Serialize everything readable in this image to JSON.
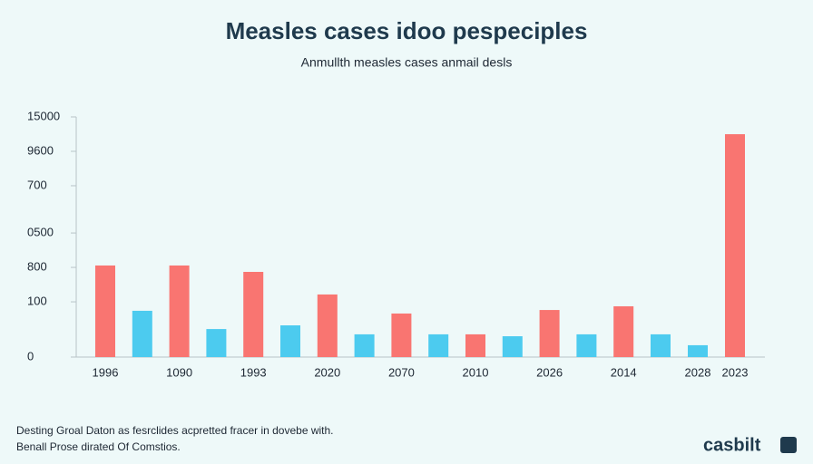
{
  "chart_data": {
    "type": "bar",
    "title": "Measles cases idoo pespeciples",
    "subtitle": "Anmullth measles cases anmail desls",
    "categories": [
      "1996",
      null,
      "1090",
      null,
      "1993",
      null,
      "2020",
      null,
      "2070",
      null,
      "2010",
      null,
      "2026",
      null,
      "2014",
      null,
      "2028",
      "2023"
    ],
    "values": [
      5720,
      2890,
      5720,
      1750,
      5320,
      1980,
      3910,
      1420,
      2720,
      1420,
      1420,
      1300,
      2940,
      1420,
      3170,
      1420,
      740,
      13920
    ],
    "colors": [
      "#f97571",
      "#4ccbef",
      "#f97571",
      "#4ccbef",
      "#f97571",
      "#4ccbef",
      "#f97571",
      "#4ccbef",
      "#f97571",
      "#4ccbef",
      "#f97571",
      "#4ccbef",
      "#f97571",
      "#4ccbef",
      "#f97571",
      "#4ccbef",
      "#4ccbef",
      "#f97571"
    ],
    "ylim": [
      0,
      15000
    ],
    "yticks": [
      0,
      {
        "value": 3450,
        "label": "100"
      },
      {
        "value": 5600,
        "label": "800"
      },
      {
        "value": 7750,
        "label": "0500"
      },
      {
        "value": 10700,
        "label": "700"
      },
      {
        "value": 12850,
        "label": "9600"
      },
      15000
    ],
    "footnote": [
      "Desting Groal Daton as fesrclides acpretted fracer in dovebe with.",
      "Benall Prose dirated Of Comstios."
    ],
    "brand": "casbilt"
  }
}
